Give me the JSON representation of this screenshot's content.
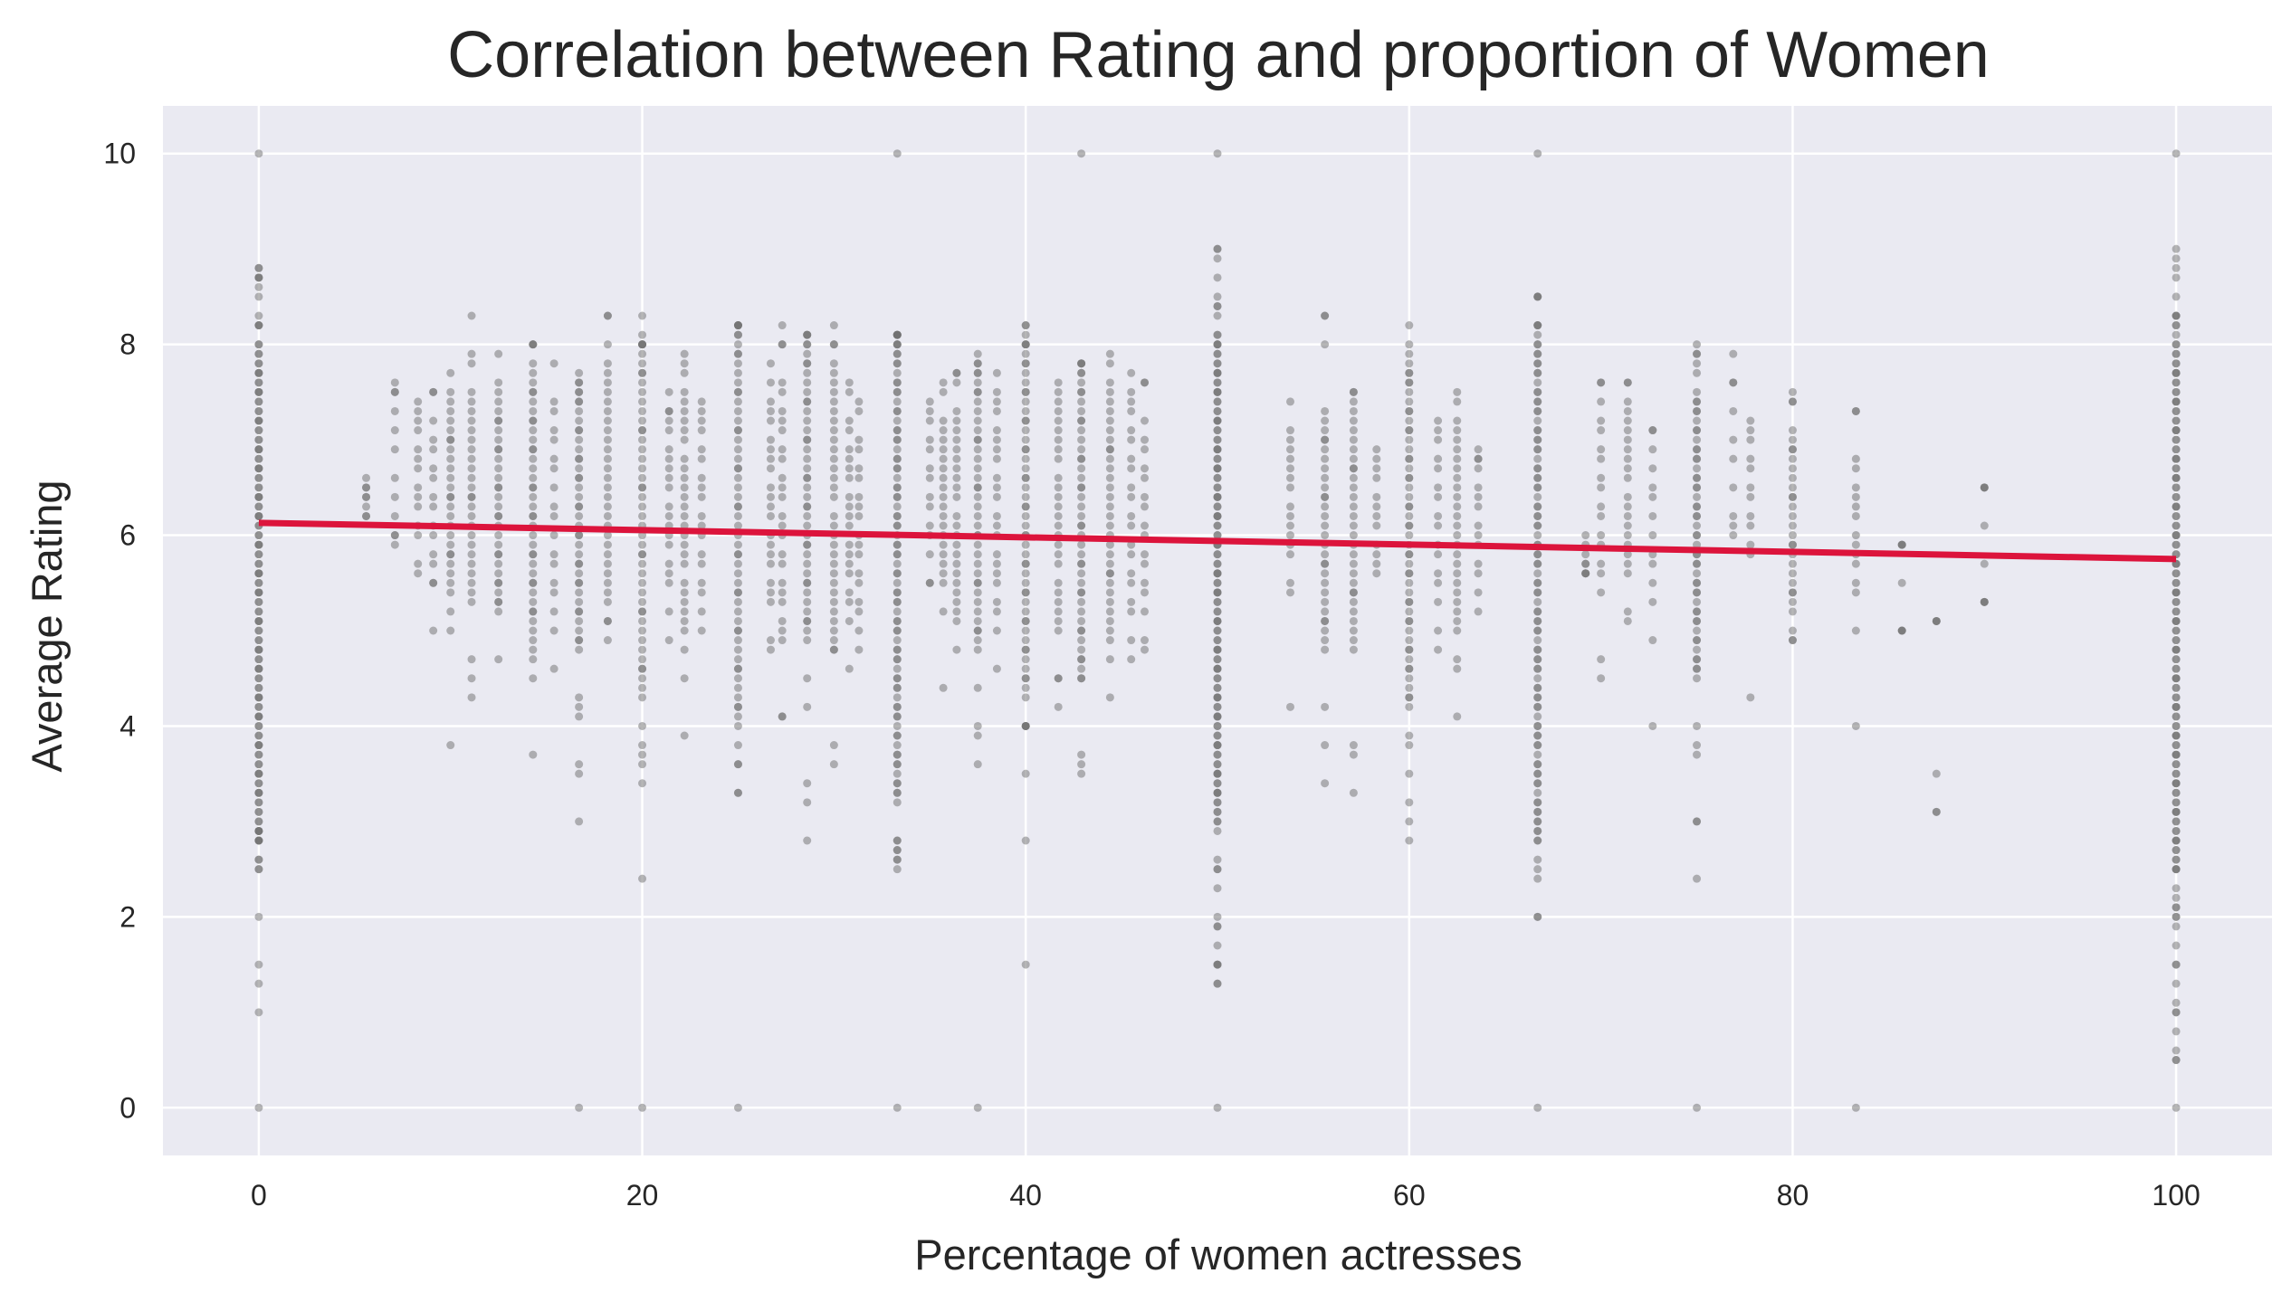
{
  "chart_data": {
    "type": "scatter",
    "title": "Correlation between Rating and proportion of Women",
    "xlabel": "Percentage of women actresses",
    "ylabel": "Average Rating",
    "xlim": [
      -5,
      105
    ],
    "ylim": [
      -0.5,
      10.5
    ],
    "x_ticks": [
      0,
      20,
      40,
      60,
      80,
      100
    ],
    "y_ticks": [
      0,
      2,
      4,
      6,
      8,
      10
    ],
    "grid": true,
    "legend": "none",
    "colors": {
      "background": "#eaeaf2",
      "grid": "#ffffff",
      "points": "#6e6e6e",
      "regression": "#dc143c"
    },
    "regression_line": {
      "x": [
        0,
        100
      ],
      "y": [
        6.13,
        5.75
      ]
    },
    "strips": [
      {
        "x": 0,
        "y_min": 2.5,
        "y_max": 8.8,
        "dense_min": 3.0,
        "dense_max": 8.0,
        "n": 120,
        "extra_y": [
          0,
          1.0,
          1.3,
          1.5,
          2.0,
          2.5,
          10
        ]
      },
      {
        "x": 5.6,
        "y_min": 6.2,
        "y_max": 6.6,
        "dense_min": 6.3,
        "dense_max": 6.5,
        "n": 4,
        "extra_y": []
      },
      {
        "x": 7.1,
        "y_min": 5.9,
        "y_max": 7.6,
        "dense_min": 6.0,
        "dense_max": 7.5,
        "n": 8,
        "extra_y": []
      },
      {
        "x": 8.3,
        "y_min": 5.6,
        "y_max": 7.4,
        "dense_min": 6.0,
        "dense_max": 7.2,
        "n": 10,
        "extra_y": []
      },
      {
        "x": 9.1,
        "y_min": 5.0,
        "y_max": 7.5,
        "dense_min": 5.5,
        "dense_max": 7.2,
        "n": 12,
        "extra_y": []
      },
      {
        "x": 10.0,
        "y_min": 5.0,
        "y_max": 7.7,
        "dense_min": 5.5,
        "dense_max": 7.3,
        "n": 22,
        "extra_y": [
          3.8
        ]
      },
      {
        "x": 11.1,
        "y_min": 4.3,
        "y_max": 8.3,
        "dense_min": 5.3,
        "dense_max": 7.5,
        "n": 24,
        "extra_y": []
      },
      {
        "x": 12.5,
        "y_min": 4.7,
        "y_max": 7.9,
        "dense_min": 5.3,
        "dense_max": 7.4,
        "n": 28,
        "extra_y": []
      },
      {
        "x": 14.3,
        "y_min": 4.5,
        "y_max": 8.0,
        "dense_min": 5.0,
        "dense_max": 7.7,
        "n": 36,
        "extra_y": [
          3.7
        ]
      },
      {
        "x": 15.4,
        "y_min": 4.6,
        "y_max": 7.8,
        "dense_min": 5.2,
        "dense_max": 7.3,
        "n": 14,
        "extra_y": []
      },
      {
        "x": 16.7,
        "y_min": 3.0,
        "y_max": 7.7,
        "dense_min": 4.8,
        "dense_max": 7.5,
        "n": 38,
        "extra_y": [
          0,
          3.5,
          3.6
        ]
      },
      {
        "x": 18.2,
        "y_min": 4.9,
        "y_max": 8.3,
        "dense_min": 5.3,
        "dense_max": 7.8,
        "n": 26,
        "extra_y": []
      },
      {
        "x": 20.0,
        "y_min": 3.4,
        "y_max": 8.3,
        "dense_min": 4.3,
        "dense_max": 8.0,
        "n": 44,
        "extra_y": [
          0,
          2.4
        ]
      },
      {
        "x": 21.4,
        "y_min": 4.9,
        "y_max": 7.5,
        "dense_min": 5.5,
        "dense_max": 7.3,
        "n": 16,
        "extra_y": []
      },
      {
        "x": 22.2,
        "y_min": 3.9,
        "y_max": 7.9,
        "dense_min": 5.0,
        "dense_max": 7.5,
        "n": 24,
        "extra_y": []
      },
      {
        "x": 23.1,
        "y_min": 5.0,
        "y_max": 7.4,
        "dense_min": 5.4,
        "dense_max": 7.2,
        "n": 14,
        "extra_y": []
      },
      {
        "x": 25.0,
        "y_min": 3.3,
        "y_max": 8.2,
        "dense_min": 4.0,
        "dense_max": 8.1,
        "n": 52,
        "extra_y": [
          0
        ]
      },
      {
        "x": 26.7,
        "y_min": 4.8,
        "y_max": 7.8,
        "dense_min": 5.3,
        "dense_max": 7.4,
        "n": 18,
        "extra_y": []
      },
      {
        "x": 27.3,
        "y_min": 4.1,
        "y_max": 8.2,
        "dense_min": 5.0,
        "dense_max": 7.6,
        "n": 20,
        "extra_y": []
      },
      {
        "x": 28.6,
        "y_min": 2.8,
        "y_max": 8.1,
        "dense_min": 4.9,
        "dense_max": 8.0,
        "n": 40,
        "extra_y": [
          3.2
        ]
      },
      {
        "x": 30.0,
        "y_min": 3.6,
        "y_max": 8.2,
        "dense_min": 4.8,
        "dense_max": 7.8,
        "n": 30,
        "extra_y": []
      },
      {
        "x": 30.8,
        "y_min": 4.6,
        "y_max": 7.6,
        "dense_min": 5.3,
        "dense_max": 7.2,
        "n": 16,
        "extra_y": []
      },
      {
        "x": 31.3,
        "y_min": 4.8,
        "y_max": 7.4,
        "dense_min": 5.2,
        "dense_max": 7.0,
        "n": 14,
        "extra_y": []
      },
      {
        "x": 33.3,
        "y_min": 2.5,
        "y_max": 8.1,
        "dense_min": 3.2,
        "dense_max": 8.0,
        "n": 80,
        "extra_y": [
          0,
          10
        ]
      },
      {
        "x": 35.0,
        "y_min": 5.5,
        "y_max": 7.4,
        "dense_min": 5.8,
        "dense_max": 7.2,
        "n": 10,
        "extra_y": []
      },
      {
        "x": 35.7,
        "y_min": 4.4,
        "y_max": 7.6,
        "dense_min": 5.5,
        "dense_max": 7.2,
        "n": 18,
        "extra_y": []
      },
      {
        "x": 36.4,
        "y_min": 4.8,
        "y_max": 7.7,
        "dense_min": 5.3,
        "dense_max": 7.3,
        "n": 20,
        "extra_y": []
      },
      {
        "x": 37.5,
        "y_min": 3.6,
        "y_max": 7.9,
        "dense_min": 4.8,
        "dense_max": 7.7,
        "n": 36,
        "extra_y": [
          0
        ]
      },
      {
        "x": 38.5,
        "y_min": 4.6,
        "y_max": 7.7,
        "dense_min": 5.2,
        "dense_max": 7.4,
        "n": 18,
        "extra_y": []
      },
      {
        "x": 40.0,
        "y_min": 3.5,
        "y_max": 8.2,
        "dense_min": 4.3,
        "dense_max": 8.0,
        "n": 50,
        "extra_y": [
          1.5,
          2.8
        ]
      },
      {
        "x": 41.7,
        "y_min": 4.2,
        "y_max": 7.6,
        "dense_min": 5.0,
        "dense_max": 7.3,
        "n": 22,
        "extra_y": []
      },
      {
        "x": 42.9,
        "y_min": 3.5,
        "y_max": 7.8,
        "dense_min": 4.5,
        "dense_max": 7.7,
        "n": 42,
        "extra_y": [
          10
        ]
      },
      {
        "x": 44.4,
        "y_min": 4.3,
        "y_max": 7.9,
        "dense_min": 5.0,
        "dense_max": 7.5,
        "n": 28,
        "extra_y": []
      },
      {
        "x": 45.5,
        "y_min": 4.7,
        "y_max": 7.7,
        "dense_min": 5.2,
        "dense_max": 7.4,
        "n": 16,
        "extra_y": []
      },
      {
        "x": 46.2,
        "y_min": 4.8,
        "y_max": 7.6,
        "dense_min": 5.2,
        "dense_max": 7.2,
        "n": 14,
        "extra_y": []
      },
      {
        "x": 50.0,
        "y_min": 1.3,
        "y_max": 9.0,
        "dense_min": 3.0,
        "dense_max": 8.0,
        "n": 120,
        "extra_y": [
          0,
          1.3,
          2.0,
          2.5,
          10
        ]
      },
      {
        "x": 53.8,
        "y_min": 5.4,
        "y_max": 7.4,
        "dense_min": 5.8,
        "dense_max": 7.0,
        "n": 12,
        "extra_y": [
          4.2
        ]
      },
      {
        "x": 55.6,
        "y_min": 3.4,
        "y_max": 8.3,
        "dense_min": 4.8,
        "dense_max": 7.3,
        "n": 30,
        "extra_y": []
      },
      {
        "x": 57.1,
        "y_min": 3.3,
        "y_max": 7.5,
        "dense_min": 4.8,
        "dense_max": 7.3,
        "n": 28,
        "extra_y": []
      },
      {
        "x": 58.3,
        "y_min": 5.6,
        "y_max": 6.9,
        "dense_min": 5.8,
        "dense_max": 6.7,
        "n": 8,
        "extra_y": []
      },
      {
        "x": 60.0,
        "y_min": 2.8,
        "y_max": 8.2,
        "dense_min": 4.2,
        "dense_max": 7.7,
        "n": 50,
        "extra_y": [
          3.5
        ]
      },
      {
        "x": 61.5,
        "y_min": 4.8,
        "y_max": 7.2,
        "dense_min": 5.3,
        "dense_max": 7.0,
        "n": 12,
        "extra_y": []
      },
      {
        "x": 62.5,
        "y_min": 4.1,
        "y_max": 7.5,
        "dense_min": 5.0,
        "dense_max": 7.1,
        "n": 22,
        "extra_y": []
      },
      {
        "x": 63.6,
        "y_min": 5.2,
        "y_max": 6.9,
        "dense_min": 5.6,
        "dense_max": 6.8,
        "n": 10,
        "extra_y": []
      },
      {
        "x": 66.7,
        "y_min": 2.0,
        "y_max": 8.5,
        "dense_min": 2.9,
        "dense_max": 8.0,
        "n": 90,
        "extra_y": [
          0,
          10
        ]
      },
      {
        "x": 69.2,
        "y_min": 5.6,
        "y_max": 6.0,
        "dense_min": 5.6,
        "dense_max": 5.8,
        "n": 4,
        "extra_y": []
      },
      {
        "x": 70.0,
        "y_min": 4.5,
        "y_max": 7.6,
        "dense_min": 5.4,
        "dense_max": 7.4,
        "n": 14,
        "extra_y": []
      },
      {
        "x": 71.4,
        "y_min": 5.1,
        "y_max": 7.6,
        "dense_min": 5.6,
        "dense_max": 7.4,
        "n": 18,
        "extra_y": []
      },
      {
        "x": 72.7,
        "y_min": 4.0,
        "y_max": 7.1,
        "dense_min": 5.3,
        "dense_max": 6.9,
        "n": 10,
        "extra_y": []
      },
      {
        "x": 75.0,
        "y_min": 2.4,
        "y_max": 8.0,
        "dense_min": 4.5,
        "dense_max": 7.5,
        "n": 50,
        "extra_y": [
          0,
          3.0
        ]
      },
      {
        "x": 76.9,
        "y_min": 6.0,
        "y_max": 7.9,
        "dense_min": 6.2,
        "dense_max": 7.6,
        "n": 6,
        "extra_y": []
      },
      {
        "x": 77.8,
        "y_min": 4.3,
        "y_max": 7.2,
        "dense_min": 5.9,
        "dense_max": 7.0,
        "n": 8,
        "extra_y": []
      },
      {
        "x": 80.0,
        "y_min": 4.9,
        "y_max": 7.5,
        "dense_min": 5.2,
        "dense_max": 7.1,
        "n": 24,
        "extra_y": []
      },
      {
        "x": 83.3,
        "y_min": 4.0,
        "y_max": 7.3,
        "dense_min": 5.4,
        "dense_max": 6.8,
        "n": 12,
        "extra_y": [
          0
        ]
      },
      {
        "x": 85.7,
        "y_min": 5.0,
        "y_max": 5.9,
        "dense_min": 5.0,
        "dense_max": 5.9,
        "n": 3,
        "extra_y": []
      },
      {
        "x": 87.5,
        "y_min": 3.1,
        "y_max": 5.1,
        "dense_min": 5.1,
        "dense_max": 5.1,
        "n": 1,
        "extra_y": [
          3.1
        ]
      },
      {
        "x": 90.0,
        "y_min": 5.3,
        "y_max": 6.5,
        "dense_min": 5.3,
        "dense_max": 6.5,
        "n": 4,
        "extra_y": []
      },
      {
        "x": 100,
        "y_min": 0.5,
        "y_max": 9.0,
        "dense_min": 2.5,
        "dense_max": 8.0,
        "n": 130,
        "extra_y": [
          0,
          0.5,
          1.0,
          1.3,
          1.5,
          1.7,
          2.0,
          2.3,
          2.5,
          10
        ]
      }
    ]
  }
}
